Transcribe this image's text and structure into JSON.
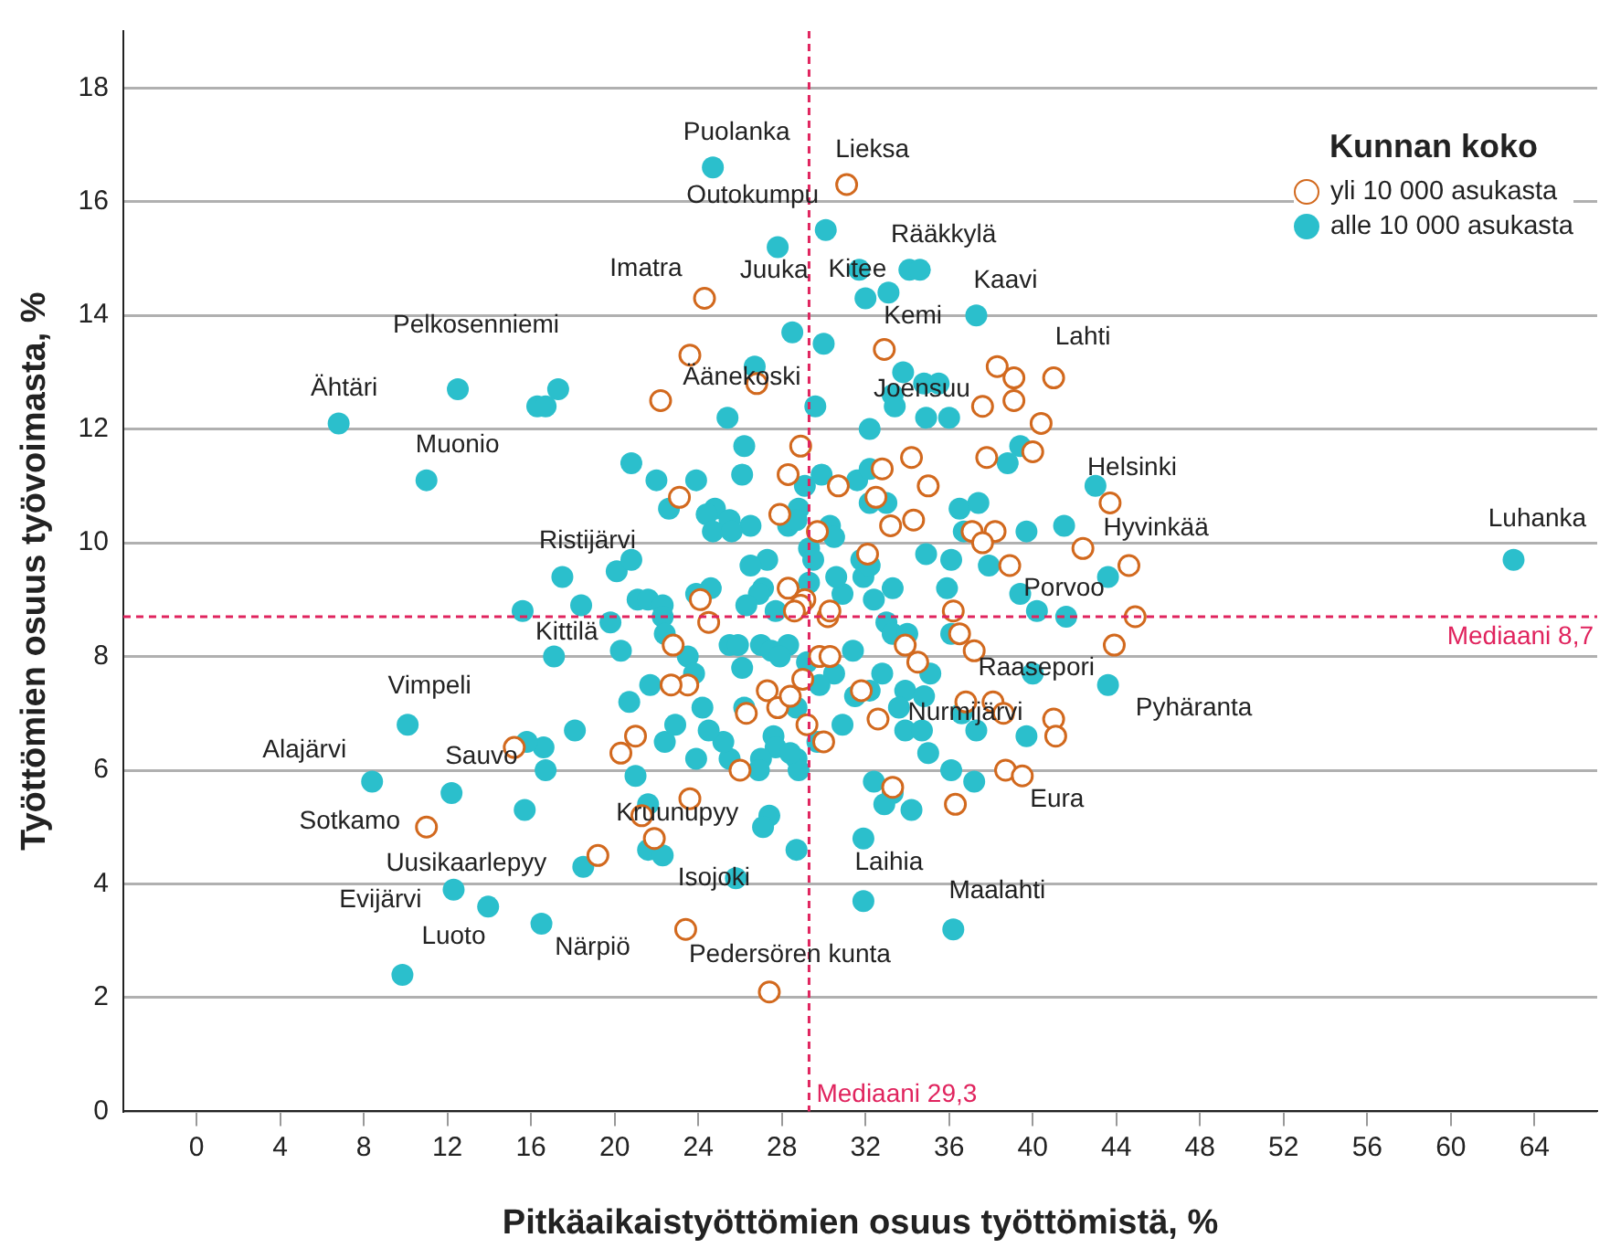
{
  "chart_data": {
    "type": "scatter",
    "xlabel": "Pitkäaikaistyöttömien osuus työttömistä, %",
    "ylabel": "Työttömien osuus työvoimasta, %",
    "legend_title": "Kunnan koko",
    "legend": "top right",
    "grid": "y",
    "marker": "circle",
    "xlim": [
      -3.5,
      67
    ],
    "xticks": [
      0,
      4,
      8,
      12,
      16,
      20,
      24,
      28,
      32,
      36,
      40,
      44,
      48,
      52,
      56,
      60,
      64
    ],
    "ylim": [
      0,
      19
    ],
    "yticks": [
      0,
      2,
      4,
      6,
      8,
      10,
      12,
      14,
      16,
      18
    ],
    "series": [
      {
        "name": "yli 10 000 asukasta",
        "color": "#d2691e",
        "x": [
          31.1,
          24.3,
          23.6,
          32.9,
          26.8,
          38.3,
          39.1,
          41.0,
          39.1,
          37.6,
          40.4,
          22.2,
          28.9,
          34.2,
          37.8,
          40.0,
          28.3,
          30.7,
          32.8,
          35.0,
          43.7,
          23.1,
          32.5,
          27.9,
          29.7,
          33.2,
          34.3,
          37.1,
          38.2,
          37.6,
          42.4,
          44.6,
          38.9,
          32.1,
          29.1,
          28.3,
          28.9,
          28.6,
          24.1,
          24.5,
          22.8,
          30.2,
          30.3,
          29.8,
          30.3,
          33.9,
          34.5,
          36.5,
          36.2,
          37.2,
          44.9,
          43.9,
          29.0,
          27.3,
          23.5,
          22.7,
          26.3,
          27.8,
          28.4,
          31.8,
          36.8,
          38.1,
          38.6,
          41.0,
          41.1,
          32.6,
          29.2,
          30.0,
          26.0,
          21.0,
          20.3,
          15.2,
          11.0,
          38.7,
          39.5,
          33.3,
          36.3,
          23.6,
          21.3,
          21.9,
          19.2,
          23.4,
          27.4
        ],
        "values": [
          16.3,
          14.3,
          13.3,
          13.4,
          12.8,
          13.1,
          12.9,
          12.9,
          12.5,
          12.4,
          12.1,
          12.5,
          11.7,
          11.5,
          11.5,
          11.6,
          11.2,
          11.0,
          11.3,
          11.0,
          10.7,
          10.8,
          10.8,
          10.5,
          10.2,
          10.3,
          10.4,
          10.2,
          10.2,
          10.0,
          9.9,
          9.6,
          9.6,
          9.8,
          9.0,
          9.2,
          8.9,
          8.8,
          9.0,
          8.6,
          8.2,
          8.7,
          8.8,
          8.0,
          8.0,
          8.2,
          7.9,
          8.4,
          8.8,
          8.1,
          8.7,
          8.2,
          7.6,
          7.4,
          7.5,
          7.5,
          7.0,
          7.1,
          7.3,
          7.4,
          7.2,
          7.2,
          7.0,
          6.9,
          6.6,
          6.9,
          6.8,
          6.5,
          6.0,
          6.6,
          6.3,
          6.4,
          5.0,
          6.0,
          5.9,
          5.7,
          5.4,
          5.5,
          5.2,
          4.8,
          4.5,
          3.2,
          2.1
        ]
      },
      {
        "name": "alle 10 000 asukasta",
        "color": "#2bbfcc",
        "x": [
          24.7,
          30.1,
          27.8,
          31.7,
          34.1,
          34.6,
          33.1,
          32.0,
          37.3,
          28.5,
          30.0,
          26.7,
          33.8,
          34.8,
          35.5,
          33.3,
          33.4,
          34.9,
          36.0,
          12.5,
          17.3,
          16.3,
          16.7,
          6.8,
          29.6,
          25.4,
          26.2,
          32.2,
          39.4,
          38.8,
          11.0,
          20.8,
          22.0,
          23.9,
          26.1,
          29.9,
          31.6,
          32.2,
          43.0,
          22.6,
          29.1,
          32.2,
          33.0,
          28.8,
          24.8,
          24.4,
          25.5,
          26.5,
          24.7,
          25.6,
          28.3,
          28.7,
          30.3,
          30.5,
          36.5,
          37.4,
          36.7,
          39.7,
          41.5,
          63.0,
          43.6,
          37.9,
          34.9,
          36.1,
          35.9,
          33.3,
          32.4,
          30.9,
          30.6,
          29.3,
          29.5,
          31.8,
          31.9,
          32.2,
          29.3,
          27.3,
          26.5,
          27.1,
          26.9,
          26.3,
          27.7,
          23.9,
          24.6,
          21.1,
          21.6,
          22.3,
          22.3,
          17.5,
          20.1,
          20.8,
          18.4,
          15.6,
          19.8,
          22.4,
          20.3,
          17.1,
          23.5,
          23.8,
          25.5,
          25.9,
          26.1,
          27.0,
          27.5,
          28.3,
          27.9,
          29.2,
          31.4,
          33.0,
          33.3,
          34.0,
          35.1,
          36.1,
          39.4,
          40.2,
          41.6,
          40.0,
          43.6,
          32.8,
          30.5,
          21.7,
          20.7,
          24.2,
          26.2,
          28.7,
          29.8,
          31.5,
          32.2,
          33.9,
          34.8,
          33.6,
          36.6,
          39.7,
          37.3,
          33.9,
          34.7,
          30.9,
          29.7,
          27.6,
          27.7,
          27.0,
          26.9,
          25.5,
          25.2,
          24.5,
          23.9,
          22.4,
          22.9,
          21.0,
          18.1,
          16.7,
          16.6,
          15.8,
          10.1,
          8.4,
          12.2,
          15.7,
          28.7,
          28.8,
          28.4,
          35.0,
          36.1,
          37.2,
          32.4,
          33.3,
          32.9,
          34.2,
          21.6,
          27.4,
          27.1,
          21.6,
          22.3,
          28.7,
          18.5,
          25.8,
          31.9,
          31.9,
          36.2,
          12.3,
          13.95,
          16.5,
          9.85
        ],
        "values": [
          16.6,
          15.5,
          15.2,
          14.8,
          14.8,
          14.8,
          14.4,
          14.3,
          14.0,
          13.7,
          13.5,
          13.1,
          13.0,
          12.8,
          12.8,
          12.6,
          12.4,
          12.2,
          12.2,
          12.7,
          12.7,
          12.4,
          12.4,
          12.1,
          12.4,
          12.2,
          11.7,
          12.0,
          11.7,
          11.4,
          11.1,
          11.4,
          11.1,
          11.1,
          11.2,
          11.2,
          11.1,
          11.3,
          11.0,
          10.6,
          11.0,
          10.7,
          10.7,
          10.6,
          10.6,
          10.5,
          10.4,
          10.3,
          10.2,
          10.2,
          10.3,
          10.4,
          10.3,
          10.1,
          10.6,
          10.7,
          10.2,
          10.2,
          10.3,
          9.7,
          9.4,
          9.6,
          9.8,
          9.7,
          9.2,
          9.2,
          9.0,
          9.1,
          9.4,
          9.9,
          9.7,
          9.7,
          9.4,
          9.6,
          9.3,
          9.7,
          9.6,
          9.2,
          9.1,
          8.9,
          8.8,
          9.1,
          9.2,
          9.0,
          9.0,
          8.9,
          8.7,
          9.4,
          9.5,
          9.7,
          8.9,
          8.8,
          8.6,
          8.4,
          8.1,
          8.0,
          8.0,
          7.7,
          8.2,
          8.2,
          7.8,
          8.2,
          8.1,
          8.2,
          8.0,
          7.9,
          8.1,
          8.6,
          8.4,
          8.4,
          7.7,
          8.4,
          9.1,
          8.8,
          8.7,
          7.7,
          7.5,
          7.7,
          7.7,
          7.5,
          7.2,
          7.1,
          7.1,
          7.1,
          7.5,
          7.3,
          7.4,
          7.4,
          7.3,
          7.1,
          7.0,
          6.6,
          6.7,
          6.7,
          6.7,
          6.8,
          6.5,
          6.6,
          6.4,
          6.2,
          6.0,
          6.2,
          6.5,
          6.7,
          6.2,
          6.5,
          6.8,
          5.9,
          6.7,
          6.0,
          6.4,
          6.5,
          6.8,
          5.8,
          5.6,
          5.3,
          6.2,
          6.0,
          6.3,
          6.3,
          6.0,
          5.8,
          5.8,
          5.6,
          5.4,
          5.3,
          5.4,
          5.2,
          5.0,
          4.6,
          4.5,
          4.6,
          4.3,
          4.1,
          4.8,
          3.7,
          3.2,
          3.9,
          3.6,
          3.3,
          2.4
        ]
      }
    ],
    "ref_lines": [
      {
        "axis": "x",
        "value": 29.3,
        "label": "Mediaani 29,3",
        "color": "#e0245e",
        "line_style": "dashed"
      },
      {
        "axis": "y",
        "value": 8.7,
        "label": "Mediaani 8,7",
        "color": "#e0245e",
        "line_style": "dashed"
      }
    ],
    "annotations": [
      {
        "text": "Puolanka",
        "x": 24.7,
        "y": 16.6
      },
      {
        "text": "Lieksa",
        "x": 31.1,
        "y": 16.3
      },
      {
        "text": "Outokumpu",
        "x": 30.1,
        "y": 15.5
      },
      {
        "text": "Rääkkylä",
        "x": 34.6,
        "y": 14.8
      },
      {
        "text": "Imatra",
        "x": 24.3,
        "y": 14.3
      },
      {
        "text": "Juuka",
        "x": 27.8,
        "y": 15.2
      },
      {
        "text": "Kitee",
        "x": 31.7,
        "y": 14.8
      },
      {
        "text": "Kaavi",
        "x": 37.3,
        "y": 14.0
      },
      {
        "text": "Kemi",
        "x": 32.0,
        "y": 14.3
      },
      {
        "text": "Pelkosenniemi",
        "x": 12.5,
        "y": 12.7
      },
      {
        "text": "Lahti",
        "x": 41.0,
        "y": 12.9
      },
      {
        "text": "Ähtäri",
        "x": 6.8,
        "y": 12.1
      },
      {
        "text": "Äänekoski",
        "x": 26.7,
        "y": 13.1
      },
      {
        "text": "Joensuu",
        "x": 33.3,
        "y": 12.6
      },
      {
        "text": "Muonio",
        "x": 11.0,
        "y": 11.1
      },
      {
        "text": "Helsinki",
        "x": 43.0,
        "y": 11.0
      },
      {
        "text": "Luhanka",
        "x": 63.0,
        "y": 9.7
      },
      {
        "text": "Hyvinkää",
        "x": 42.4,
        "y": 9.9
      },
      {
        "text": "Ristijärvi",
        "x": 20.8,
        "y": 9.7
      },
      {
        "text": "Porvoo",
        "x": 39.4,
        "y": 9.1
      },
      {
        "text": "Kittilä",
        "x": 17.1,
        "y": 8.0
      },
      {
        "text": "Raasepori",
        "x": 40.0,
        "y": 7.7
      },
      {
        "text": "Vimpeli",
        "x": 10.1,
        "y": 6.8
      },
      {
        "text": "Pyhäranta",
        "x": 43.6,
        "y": 7.5
      },
      {
        "text": "Nurmijärvi",
        "x": 36.6,
        "y": 7.0
      },
      {
        "text": "Alajärvi",
        "x": 8.4,
        "y": 5.8
      },
      {
        "text": "Sauvo",
        "x": 15.2,
        "y": 6.4
      },
      {
        "text": "Eura",
        "x": 39.5,
        "y": 5.9
      },
      {
        "text": "Sotkamo",
        "x": 11.0,
        "y": 5.0
      },
      {
        "text": "Kruunupyy",
        "x": 21.6,
        "y": 5.4
      },
      {
        "text": "Uusikaarlepyy",
        "x": 18.5,
        "y": 4.3
      },
      {
        "text": "Laihia",
        "x": 31.9,
        "y": 3.7
      },
      {
        "text": "Isojoki",
        "x": 25.8,
        "y": 4.1
      },
      {
        "text": "Maalahti",
        "x": 36.2,
        "y": 3.2
      },
      {
        "text": "Evijärvi",
        "x": 12.3,
        "y": 3.9
      },
      {
        "text": "Luoto",
        "x": 9.85,
        "y": 2.4
      },
      {
        "text": "Närpiö",
        "x": 16.5,
        "y": 3.3
      },
      {
        "text": "Pedersören kunta",
        "x": 23.4,
        "y": 3.2
      }
    ]
  }
}
